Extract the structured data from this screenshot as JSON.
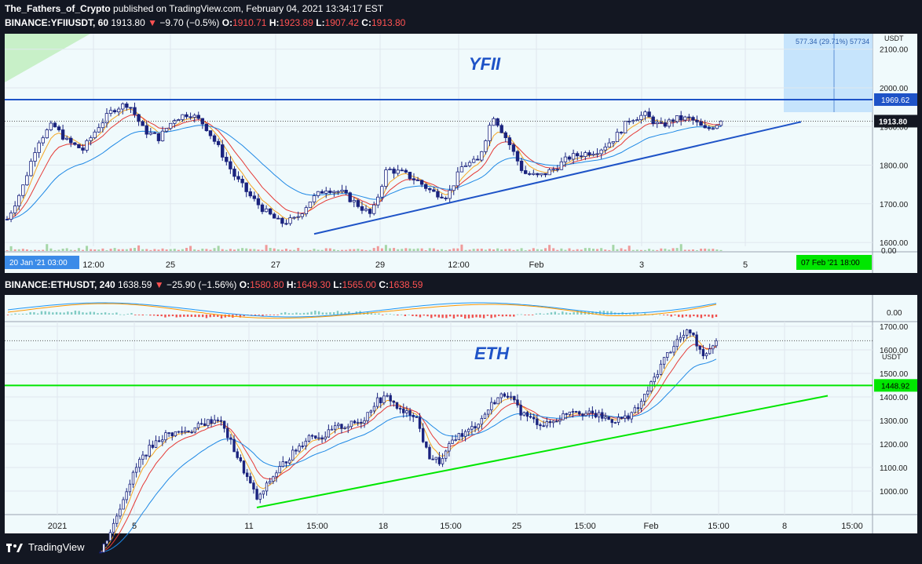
{
  "header": {
    "publisher": "The_Fathers_of_Crypto",
    "published_text": "published on TradingView.com, February 04, 2021 13:34:17 EST"
  },
  "top": {
    "symbol": "BINANCE:YFIIUSDT, 60",
    "last": "1913.80",
    "change": "−9.70 (−0.5%)",
    "o": "1910.71",
    "h": "1923.89",
    "l": "1907.42",
    "c": "1913.80",
    "label_o": "O:",
    "label_h": "H:",
    "label_l": "L:",
    "label_c": "C:",
    "watermark": "YFII",
    "currency": "USDT",
    "measure_text": "577.34 (29.71%) 57734",
    "resistance_label": "1969.62",
    "price_label": "1913.80",
    "crosshair_start": "20 Jan '21   03:00",
    "crosshair_end": "07 Feb '21   18:00",
    "volume_axis": "0.00"
  },
  "bottom": {
    "symbol": "BINANCE:ETHUSDT, 240",
    "last": "1638.59",
    "change": "−25.90 (−1.56%)",
    "o": "1580.80",
    "h": "1649.30",
    "l": "1565.00",
    "c": "1638.59",
    "label_o": "O:",
    "label_h": "H:",
    "label_l": "L:",
    "label_c": "C:",
    "watermark": "ETH",
    "currency": "USDT",
    "support_label": "1448.92",
    "macd_axis": "0.00"
  },
  "footer": {
    "brand": "TradingView"
  },
  "colors": {
    "up": "#26a69a",
    "down": "#ef5350",
    "candle": "#1a237e",
    "resistance": "#1e53c7",
    "support_eth": "#00e600",
    "bg_pane": "#f0fafc"
  },
  "chart_data": [
    {
      "type": "candlestick",
      "title": "BINANCE:YFIIUSDT, 60",
      "ylim": [
        1590,
        2140
      ],
      "y_ticks": [
        1600,
        1700,
        1800,
        1900,
        2000,
        2100
      ],
      "x_ticks": [
        "12:00",
        "25",
        "27",
        "29",
        "12:00",
        "Feb",
        "3",
        "5"
      ],
      "horizontal_lines": [
        {
          "value": 1969.62,
          "label": "1969.62"
        }
      ],
      "trendline": {
        "from": 1622,
        "to": 1912
      },
      "last_price": 1913.8,
      "close_path": [
        1660,
        1740,
        1860,
        1905,
        1860,
        1840,
        1900,
        1945,
        1960,
        1890,
        1870,
        1920,
        1935,
        1905,
        1840,
        1770,
        1720,
        1680,
        1650,
        1660,
        1710,
        1740,
        1730,
        1700,
        1670,
        1790,
        1780,
        1760,
        1730,
        1720,
        1800,
        1810,
        1930,
        1860,
        1780,
        1770,
        1790,
        1820,
        1830,
        1840,
        1870,
        1920,
        1930,
        1900,
        1920,
        1920,
        1890,
        1913.8
      ]
    },
    {
      "type": "candlestick",
      "title": "BINANCE:ETHUSDT, 240",
      "ylim": [
        900,
        1720
      ],
      "y_ticks": [
        1000,
        1100,
        1200,
        1300,
        1400,
        1500,
        1600,
        1700
      ],
      "x_ticks": [
        "2021",
        "5",
        "11",
        "15:00",
        "18",
        "15:00",
        "25",
        "15:00",
        "Feb",
        "15:00",
        "8",
        "15:00"
      ],
      "horizontal_lines": [
        {
          "value": 1448.92,
          "label": "1448.92"
        }
      ],
      "trendline": {
        "from": 930,
        "to": 1405
      },
      "last_price": 1638.59,
      "close_path": [
        740,
        860,
        1010,
        1130,
        1200,
        1240,
        1250,
        1260,
        1290,
        1310,
        1200,
        1080,
        960,
        1050,
        1120,
        1180,
        1240,
        1230,
        1270,
        1280,
        1300,
        1380,
        1400,
        1330,
        1330,
        1150,
        1120,
        1230,
        1250,
        1300,
        1380,
        1420,
        1340,
        1300,
        1280,
        1310,
        1350,
        1330,
        1320,
        1300,
        1310,
        1350,
        1450,
        1560,
        1640,
        1680,
        1580,
        1638.59
      ]
    }
  ]
}
